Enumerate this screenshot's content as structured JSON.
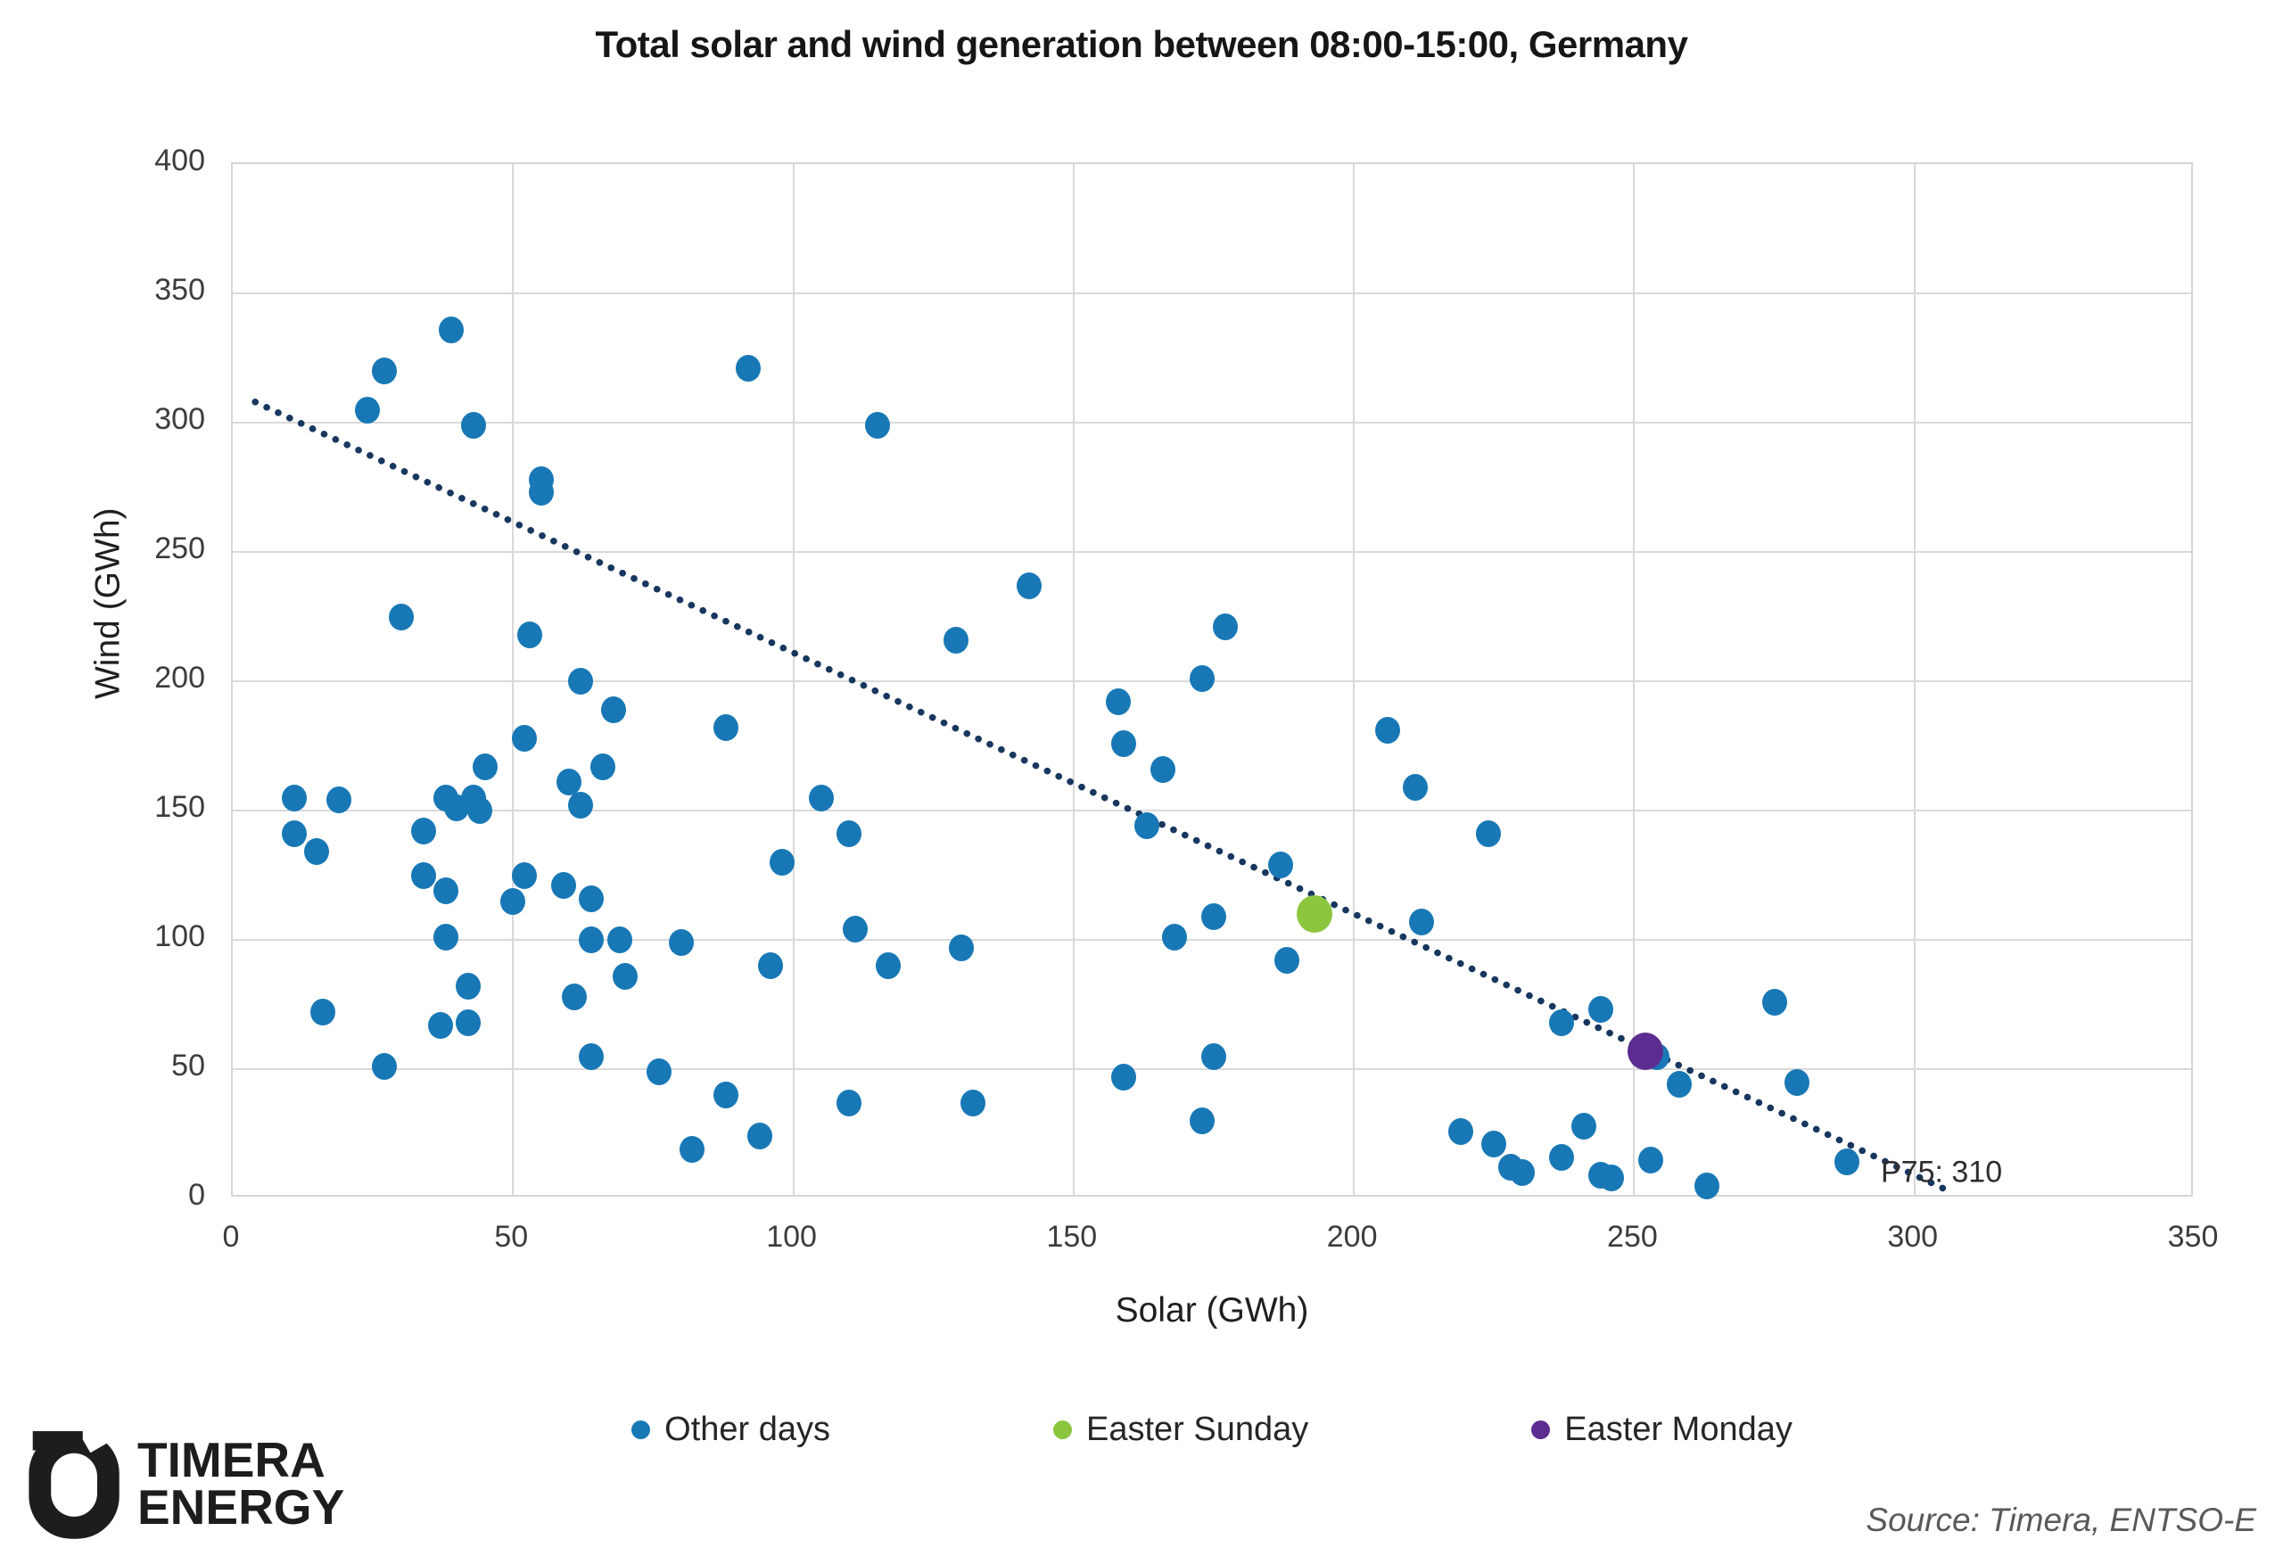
{
  "chart_data": {
    "type": "scatter",
    "title": "Total solar and wind generation between 08:00-15:00, Germany",
    "xlabel": "Solar (GWh)",
    "ylabel": "Wind (GWh)",
    "xlim": [
      0,
      350
    ],
    "ylim": [
      0,
      400
    ],
    "xticks": [
      0,
      50,
      100,
      150,
      200,
      250,
      300,
      350
    ],
    "yticks": [
      0,
      50,
      100,
      150,
      200,
      250,
      300,
      350,
      400
    ],
    "grid": true,
    "grid_color": "#d9d9d9",
    "legend_position": "bottom",
    "trendline": {
      "style": "dotted",
      "color": "#17375E",
      "x1": 4,
      "y1": 308,
      "x2": 307,
      "y2": 2,
      "annotation": {
        "text": "P75: 310",
        "x": 294,
        "y": 10
      }
    },
    "series": [
      {
        "name": "Other days",
        "color": "#1878B6",
        "marker_size": 28,
        "points": [
          [
            39,
            336
          ],
          [
            27,
            320
          ],
          [
            92,
            321
          ],
          [
            24,
            305
          ],
          [
            43,
            299
          ],
          [
            115,
            299
          ],
          [
            55,
            278
          ],
          [
            55,
            273
          ],
          [
            142,
            237
          ],
          [
            30,
            225
          ],
          [
            177,
            221
          ],
          [
            53,
            218
          ],
          [
            129,
            216
          ],
          [
            173,
            201
          ],
          [
            62,
            200
          ],
          [
            158,
            192
          ],
          [
            68,
            189
          ],
          [
            88,
            182
          ],
          [
            206,
            181
          ],
          [
            52,
            178
          ],
          [
            159,
            176
          ],
          [
            45,
            167
          ],
          [
            66,
            167
          ],
          [
            166,
            166
          ],
          [
            60,
            161
          ],
          [
            211,
            159
          ],
          [
            11,
            155
          ],
          [
            38,
            155
          ],
          [
            105,
            155
          ],
          [
            19,
            154
          ],
          [
            43,
            155
          ],
          [
            44,
            150
          ],
          [
            40,
            151
          ],
          [
            62,
            152
          ],
          [
            163,
            144
          ],
          [
            34,
            142
          ],
          [
            11,
            141
          ],
          [
            110,
            141
          ],
          [
            224,
            141
          ],
          [
            15,
            134
          ],
          [
            98,
            130
          ],
          [
            187,
            129
          ],
          [
            34,
            125
          ],
          [
            52,
            125
          ],
          [
            59,
            121
          ],
          [
            38,
            119
          ],
          [
            64,
            116
          ],
          [
            50,
            115
          ],
          [
            175,
            109
          ],
          [
            212,
            107
          ],
          [
            111,
            104
          ],
          [
            38,
            101
          ],
          [
            168,
            101
          ],
          [
            64,
            100
          ],
          [
            69,
            100
          ],
          [
            80,
            99
          ],
          [
            130,
            97
          ],
          [
            96,
            90
          ],
          [
            117,
            90
          ],
          [
            188,
            92
          ],
          [
            70,
            86
          ],
          [
            42,
            82
          ],
          [
            61,
            78
          ],
          [
            275,
            76
          ],
          [
            244,
            73
          ],
          [
            16,
            72
          ],
          [
            237,
            68
          ],
          [
            42,
            68
          ],
          [
            37,
            67
          ],
          [
            64,
            55
          ],
          [
            254,
            55
          ],
          [
            175,
            55
          ],
          [
            27,
            51
          ],
          [
            76,
            49
          ],
          [
            159,
            47
          ],
          [
            279,
            45
          ],
          [
            258,
            44
          ],
          [
            88,
            40
          ],
          [
            110,
            37
          ],
          [
            132,
            37
          ],
          [
            173,
            30
          ],
          [
            241,
            28
          ],
          [
            219,
            26
          ],
          [
            94,
            24
          ],
          [
            225,
            21
          ],
          [
            82,
            19
          ],
          [
            237,
            16
          ],
          [
            253,
            15
          ],
          [
            288,
            14
          ],
          [
            228,
            12
          ],
          [
            230,
            10
          ],
          [
            244,
            9
          ],
          [
            246,
            8
          ],
          [
            263,
            5
          ]
        ]
      },
      {
        "name": "Easter Sunday",
        "color": "#8CC63F",
        "marker_size": 40,
        "points": [
          [
            193,
            110
          ]
        ]
      },
      {
        "name": "Easter Monday",
        "color": "#5B2D90",
        "marker_size": 40,
        "points": [
          [
            252,
            57
          ]
        ]
      }
    ]
  },
  "footer": {
    "logo_line1": "TIMERA",
    "logo_line2": "ENERGY",
    "source": "Source: Timera, ENTSO-E"
  }
}
